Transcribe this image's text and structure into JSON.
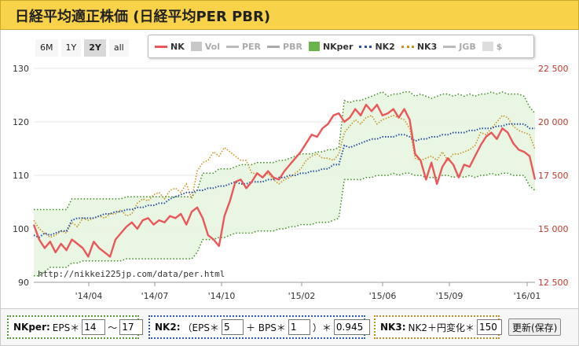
{
  "title": "日経平均適正株価 (日経平均PER PBR)",
  "range_buttons": [
    {
      "label": "6M",
      "active": false
    },
    {
      "label": "1Y",
      "active": false
    },
    {
      "label": "2Y",
      "active": true
    },
    {
      "label": "all",
      "active": false
    }
  ],
  "legend": [
    {
      "key": "nk",
      "label": "NK",
      "color": "#e8585a",
      "style": "line",
      "active": true
    },
    {
      "key": "vol",
      "label": "Vol",
      "color": "#c8c8c8",
      "style": "box",
      "active": false
    },
    {
      "key": "per",
      "label": "PER",
      "color": "#bbbbbb",
      "style": "line",
      "active": false
    },
    {
      "key": "pbr",
      "label": "PBR",
      "color": "#aaaaaa",
      "style": "line",
      "active": false
    },
    {
      "key": "nkper",
      "label": "NKper",
      "color": "#6bb44a",
      "style": "box",
      "active": true
    },
    {
      "key": "nk2",
      "label": "NK2",
      "color": "#2b4fa6",
      "style": "dots",
      "active": true
    },
    {
      "key": "nk3",
      "label": "NK3",
      "color": "#c8941f",
      "style": "dots",
      "active": true
    },
    {
      "key": "jgb",
      "label": "JGB",
      "color": "#bbbbbb",
      "style": "line",
      "active": false
    },
    {
      "key": "usd",
      "label": "$",
      "color": "#dddddd",
      "style": "box",
      "active": false
    }
  ],
  "url": "http://nikkei225jp.com/data/per.html",
  "controls": {
    "nkper": {
      "label": "NKper:",
      "text1": "EPS＊",
      "eps_low": "14",
      "sep": "〜",
      "eps_high": "17"
    },
    "nk2": {
      "label": "NK2:",
      "text1": "（EPS＊",
      "eps_mult": "5",
      "text2": "＋ BPS＊",
      "bps_mult": "1",
      "text3": "）＊",
      "factor": "0.945"
    },
    "nk3": {
      "label": "NK3:",
      "text1": "NK2＋円変化＊",
      "yen_mult": "150"
    },
    "save_label": "更新(保存)"
  },
  "chart_data": {
    "type": "line",
    "x_ticks": [
      "'14/04",
      "'14/07",
      "'14/10",
      "'15/02",
      "'15/06",
      "'15/09",
      "'16/01"
    ],
    "left_axis": {
      "ticks": [
        90,
        100,
        110,
        120,
        130
      ],
      "range": [
        90,
        130
      ]
    },
    "right_axis": {
      "ticks": [
        "12 500",
        "15 000",
        "17 500",
        "20 000",
        "22 500"
      ],
      "range": [
        12500,
        22500
      ]
    },
    "series": [
      {
        "name": "NK",
        "color": "#e8585a",
        "values": [
          15200,
          14500,
          14100,
          14400,
          13900,
          14300,
          14000,
          14500,
          14300,
          14100,
          13700,
          14400,
          14100,
          13900,
          13700,
          14500,
          14800,
          15100,
          15300,
          15000,
          15400,
          15500,
          15200,
          15400,
          15300,
          15600,
          15500,
          15700,
          15200,
          15800,
          16000,
          15500,
          14700,
          14500,
          14200,
          15600,
          16300,
          17200,
          17300,
          16900,
          17200,
          17600,
          17400,
          17700,
          17400,
          17300,
          17700,
          18000,
          18300,
          18600,
          19000,
          19400,
          19300,
          19700,
          19900,
          20300,
          20400,
          20000,
          20200,
          20600,
          20300,
          20800,
          20500,
          20800,
          20300,
          20400,
          20600,
          20200,
          20600,
          20100,
          18500,
          18200,
          17300,
          18100,
          17100,
          17900,
          18300,
          18000,
          17400,
          18000,
          17900,
          18400,
          18900,
          19300,
          19500,
          19200,
          19700,
          19500,
          19000,
          18700,
          18600,
          18400,
          17300
        ]
      },
      {
        "name": "NK2",
        "color": "#2b4fa6",
        "values": [
          14700,
          14600,
          14800,
          14700,
          14800,
          14900,
          14900,
          15400,
          15500,
          15500,
          15500,
          15500,
          15600,
          15700,
          15700,
          15800,
          15800,
          15900,
          15900,
          16000,
          16000,
          16100,
          16100,
          16200,
          16200,
          16400,
          16500,
          16600,
          16700,
          16700,
          16800,
          16800,
          16900,
          16900,
          17000,
          17000,
          17100,
          17200,
          17100,
          17100,
          17200,
          17200,
          17200,
          17300,
          17300,
          17400,
          17400,
          17500,
          17500,
          17600,
          17600,
          17700,
          17700,
          17800,
          17800,
          18000,
          18000,
          18900,
          18800,
          18900,
          19000,
          19100,
          19200,
          19200,
          19300,
          19300,
          19300,
          19400,
          19400,
          19300,
          19100,
          19200,
          19200,
          19300,
          19300,
          19400,
          19400,
          19500,
          19500,
          19500,
          19600,
          19600,
          19700,
          19700,
          19700,
          19800,
          19800,
          19900,
          19900,
          19900,
          19900,
          19700,
          19700
        ]
      },
      {
        "name": "NK3",
        "color": "#c8941f",
        "values": [
          15400,
          15000,
          14800,
          14600,
          14700,
          14900,
          14800,
          15300,
          15100,
          15500,
          15400,
          15500,
          15600,
          15500,
          15700,
          15700,
          15900,
          15600,
          15700,
          16200,
          16400,
          16300,
          16600,
          16700,
          16400,
          16800,
          16900,
          16700,
          17100,
          16400,
          17700,
          18100,
          18200,
          18600,
          18400,
          18800,
          18600,
          18400,
          18200,
          18200,
          17600,
          17600,
          17400,
          17600,
          17300,
          17100,
          17300,
          17400,
          17600,
          17800,
          18200,
          18400,
          18500,
          18300,
          18300,
          18200,
          18500,
          19500,
          19800,
          20100,
          19900,
          20200,
          20300,
          19900,
          20100,
          20200,
          20300,
          20200,
          20100,
          19700,
          18300,
          18200,
          18300,
          18400,
          18200,
          18600,
          18200,
          18500,
          18500,
          18600,
          18700,
          18900,
          19500,
          19400,
          19700,
          20000,
          20300,
          20200,
          19800,
          19600,
          19500,
          19400,
          18700
        ]
      },
      {
        "name": "NKper-high",
        "color": "#6bb44a",
        "values": [
          15900,
          15900,
          15900,
          15900,
          15900,
          15900,
          15900,
          16400,
          16400,
          16400,
          16400,
          16400,
          16400,
          16400,
          16400,
          16400,
          16400,
          16500,
          16500,
          16500,
          16500,
          16500,
          16500,
          16500,
          16500,
          16500,
          16500,
          16500,
          16500,
          16500,
          16800,
          17600,
          17600,
          17600,
          17800,
          17800,
          17800,
          17900,
          18000,
          18000,
          18000,
          18100,
          18100,
          18100,
          18100,
          18200,
          18200,
          18300,
          18400,
          18500,
          18500,
          18500,
          18600,
          18600,
          18700,
          18700,
          18800,
          21000,
          20900,
          21000,
          21000,
          21100,
          21200,
          21300,
          21400,
          21200,
          21300,
          21300,
          21400,
          21400,
          21200,
          21300,
          21200,
          21100,
          21200,
          21300,
          21300,
          21200,
          21300,
          21200,
          21300,
          21200,
          21300,
          21300,
          21400,
          21300,
          21400,
          21300,
          21300,
          21300,
          21200,
          20700,
          20400
        ]
      },
      {
        "name": "NKper-low",
        "color": "#6bb44a",
        "values": [
          12800,
          12800,
          13000,
          13200,
          13200,
          13200,
          13200,
          13400,
          13400,
          13500,
          13500,
          13500,
          13500,
          13500,
          13500,
          13500,
          13500,
          13600,
          13600,
          13600,
          13600,
          13600,
          13600,
          13600,
          13600,
          13600,
          13600,
          13600,
          13600,
          13600,
          13900,
          14500,
          14500,
          14500,
          14600,
          14600,
          14700,
          14800,
          14800,
          14800,
          14800,
          14900,
          14900,
          14900,
          14900,
          15000,
          15000,
          15100,
          15100,
          15200,
          15200,
          15200,
          15300,
          15300,
          15300,
          15400,
          15500,
          17300,
          17300,
          17300,
          17300,
          17400,
          17400,
          17500,
          17500,
          17500,
          17600,
          17500,
          17600,
          17600,
          17500,
          17500,
          17400,
          17400,
          17400,
          17500,
          17500,
          17400,
          17500,
          17400,
          17500,
          17400,
          17500,
          17500,
          17600,
          17500,
          17600,
          17600,
          17500,
          17500,
          17500,
          17000,
          16800
        ]
      }
    ]
  }
}
